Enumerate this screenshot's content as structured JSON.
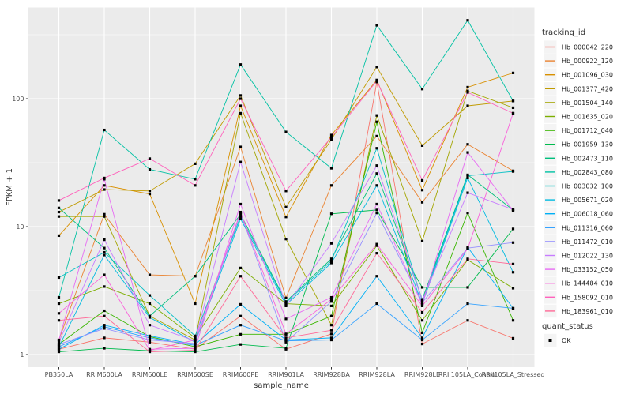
{
  "chart_data": {
    "type": "line",
    "title": "",
    "xlabel": "sample_name",
    "ylabel": "FPKM + 1",
    "y_scale": "log10",
    "y_ticks": [
      "1",
      "10",
      "100"
    ],
    "ylim_log": [
      1,
      450
    ],
    "grid": "on",
    "panel_bg": "#EBEBEB",
    "grid_color": "#FFFFFF",
    "axis_text_color": "#4D4D4D",
    "axis_title_color": "#303030",
    "point_marker": "black-square",
    "legend_position": "right",
    "categories": [
      "PB350LA",
      "RRIM600LA",
      "RRIM600LE",
      "RRIM600SE",
      "RRIM600PE",
      "RRIM901LA",
      "RRIM928BA",
      "RRIM928LA",
      "RRIM928LE",
      "RRII105LA_Control",
      "RRII105LA_Stressed"
    ],
    "legend_title": "tracking_id",
    "quant_status": {
      "title": "quant_status",
      "items": [
        {
          "label": "OK",
          "marker": "black-square"
        }
      ]
    },
    "series": [
      {
        "name": "Hb_000042_220",
        "color": "#F8766D",
        "values": [
          1.1,
          1.35,
          1.25,
          1.1,
          2.0,
          1.1,
          1.45,
          135,
          1.21,
          1.85,
          1.34
        ]
      },
      {
        "name": "Hb_000922_120",
        "color": "#EA8331",
        "values": [
          1.3,
          12.5,
          4.2,
          4.1,
          42,
          2.77,
          21,
          51,
          15.5,
          44,
          27.3
        ]
      },
      {
        "name": "Hb_001096_030",
        "color": "#D89000",
        "values": [
          8.5,
          21,
          18,
          2.5,
          88,
          11.9,
          52,
          140,
          19.3,
          123,
          159
        ]
      },
      {
        "name": "Hb_001377_420",
        "color": "#C09B00",
        "values": [
          13,
          19.5,
          19,
          31,
          106,
          14.2,
          48,
          177,
          43,
          88,
          96
        ]
      },
      {
        "name": "Hb_001504_140",
        "color": "#A3A500",
        "values": [
          12,
          12,
          2.0,
          1.3,
          77,
          8.0,
          1.7,
          74,
          7.7,
          115,
          85
        ]
      },
      {
        "name": "Hb_001635_020",
        "color": "#7CAE00",
        "values": [
          2.5,
          3.4,
          2.5,
          1.35,
          4.75,
          2.5,
          2.4,
          7.1,
          1.85,
          5.5,
          3.3
        ]
      },
      {
        "name": "Hb_001712_040",
        "color": "#39B600",
        "values": [
          1.2,
          2.2,
          1.38,
          1.15,
          1.44,
          1.44,
          2.0,
          66,
          1.48,
          12.8,
          1.85
        ]
      },
      {
        "name": "Hb_001959_130",
        "color": "#00BB4E",
        "values": [
          1.05,
          1.12,
          1.07,
          1.05,
          1.2,
          1.12,
          12.6,
          13.5,
          3.35,
          3.35,
          9.6
        ]
      },
      {
        "name": "Hb_002473_110",
        "color": "#00BF7D",
        "values": [
          14,
          6.8,
          2.0,
          4.1,
          12.5,
          2.6,
          5.6,
          26,
          2.7,
          25.4,
          13.5
        ]
      },
      {
        "name": "Hb_002843_080",
        "color": "#00C1A3",
        "values": [
          2.8,
          57,
          28,
          23.5,
          185,
          55,
          28.6,
          375,
          119,
          410,
          96
        ]
      },
      {
        "name": "Hb_003032_100",
        "color": "#00BFC4",
        "values": [
          4.0,
          6.3,
          2.9,
          1.4,
          12,
          2.55,
          5.4,
          41,
          2.6,
          25,
          27
        ]
      },
      {
        "name": "Hb_005671_020",
        "color": "#00BAE0",
        "values": [
          1.15,
          6.0,
          1.95,
          1.25,
          11.5,
          2.45,
          5.2,
          21,
          2.5,
          24,
          4.4
        ]
      },
      {
        "name": "Hb_006018_060",
        "color": "#00B0F6",
        "values": [
          1.1,
          1.7,
          1.4,
          1.2,
          2.47,
          1.3,
          1.35,
          4.1,
          1.35,
          6.9,
          2.3
        ]
      },
      {
        "name": "Hb_011316_060",
        "color": "#35A2FF",
        "values": [
          1.15,
          1.65,
          1.35,
          1.18,
          1.7,
          1.28,
          1.3,
          2.5,
          1.3,
          2.5,
          2.3
        ]
      },
      {
        "name": "Hb_011472_010",
        "color": "#9590FF",
        "values": [
          1.2,
          1.6,
          1.3,
          1.22,
          12.8,
          1.25,
          2.6,
          12.8,
          2.55,
          6.8,
          7.5
        ]
      },
      {
        "name": "Hb_012022_130",
        "color": "#C77CFF",
        "values": [
          1.25,
          7.9,
          1.7,
          1.28,
          32,
          2.4,
          7.4,
          30,
          2.65,
          18.4,
          13.6
        ]
      },
      {
        "name": "Hb_033152_050",
        "color": "#E76BF3",
        "values": [
          1.3,
          23.5,
          1.1,
          1.12,
          15,
          1.9,
          2.8,
          15,
          2.45,
          38,
          13.4
        ]
      },
      {
        "name": "Hb_144484_010",
        "color": "#FA62DB",
        "values": [
          2.1,
          4.2,
          1.08,
          1.3,
          13,
          1.45,
          2.7,
          7.3,
          2.4,
          6.7,
          77
        ]
      },
      {
        "name": "Hb_158092_010",
        "color": "#FF62BC",
        "values": [
          16,
          24,
          34,
          21,
          100,
          19,
          50,
          138,
          23,
          112,
          77
        ]
      },
      {
        "name": "Hb_183961_010",
        "color": "#FF6A98",
        "values": [
          1.85,
          2.0,
          1.05,
          1.08,
          4.1,
          1.35,
          1.55,
          6.2,
          2.14,
          5.6,
          5.1
        ]
      }
    ]
  }
}
